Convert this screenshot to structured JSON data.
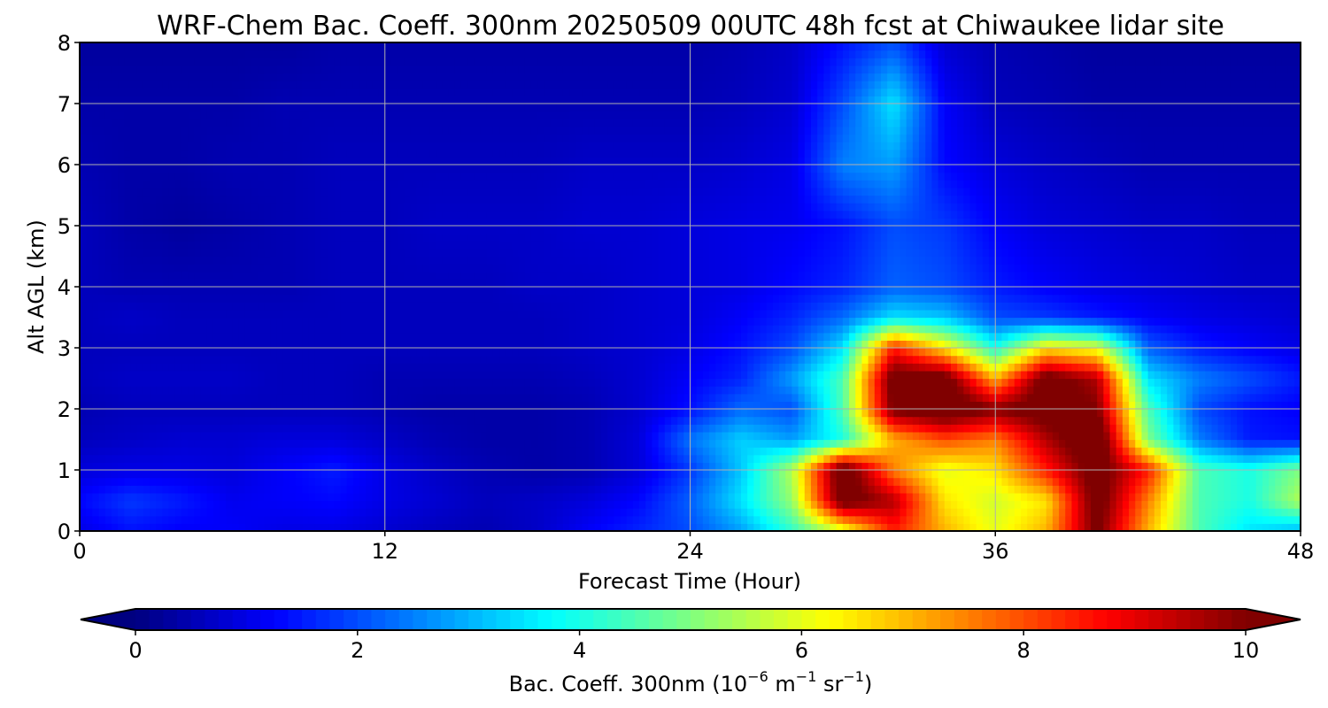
{
  "chart_data": {
    "type": "heatmap",
    "title": "WRF-Chem Bac. Coeff. 300nm  20250509 00UTC 48h fcst at Chiwaukee lidar site",
    "xlabel": "Forecast Time (Hour)",
    "ylabel": "Alt AGL (km)",
    "xlim": [
      0,
      48
    ],
    "ylim": [
      0,
      8
    ],
    "x_ticks": [
      "0",
      "12",
      "24",
      "36",
      "48"
    ],
    "y_ticks": [
      "0",
      "1",
      "2",
      "3",
      "4",
      "5",
      "6",
      "7",
      "8"
    ],
    "grid": true,
    "colormap": "jet",
    "colorbar": {
      "label_main": "Bac. Coeff. 300nm  (10",
      "exp1": "−6",
      "label_m": " m",
      "exp2": "−1",
      "label_sr": " sr",
      "exp3": "−1",
      "label_end": ")",
      "range": [
        0,
        10
      ],
      "extend": "both",
      "ticks": [
        "0",
        "2",
        "4",
        "6",
        "8",
        "10"
      ]
    },
    "x_hours": [
      0,
      2,
      4,
      6,
      8,
      10,
      12,
      14,
      16,
      18,
      20,
      22,
      24,
      26,
      28,
      30,
      32,
      34,
      36,
      38,
      40,
      42,
      44,
      46,
      48
    ],
    "y_km": [
      0,
      0.5,
      1,
      1.5,
      2,
      2.5,
      3,
      3.5,
      4,
      5,
      6,
      7,
      8
    ],
    "values": [
      [
        1.0,
        1.4,
        1.2,
        1.2,
        1.0,
        1.0,
        0.8,
        0.6,
        0.5,
        0.7,
        1.2,
        1.6,
        2.0,
        2.8,
        4.2,
        5.8,
        8.5,
        7.0,
        6.0,
        7.0,
        10.2,
        7.0,
        4.5,
        3.5,
        3.0
      ],
      [
        1.3,
        1.8,
        1.5,
        1.1,
        1.2,
        1.3,
        1.0,
        0.8,
        0.6,
        0.7,
        0.9,
        1.3,
        2.2,
        3.5,
        5.2,
        10.5,
        9.5,
        6.5,
        5.8,
        6.5,
        10.5,
        7.5,
        4.5,
        4.0,
        5.5
      ],
      [
        0.9,
        1.0,
        1.0,
        0.9,
        1.2,
        1.5,
        1.0,
        0.7,
        0.5,
        0.4,
        0.5,
        0.9,
        1.8,
        3.2,
        5.5,
        10.8,
        7.5,
        6.0,
        6.5,
        8.5,
        10.5,
        8.5,
        4.5,
        4.0,
        5.0
      ],
      [
        0.6,
        0.7,
        0.8,
        0.8,
        0.9,
        0.9,
        0.7,
        0.5,
        0.4,
        0.4,
        0.5,
        0.9,
        2.4,
        3.3,
        2.8,
        4.0,
        7.0,
        8.0,
        7.5,
        9.5,
        11.0,
        5.0,
        2.5,
        1.5,
        1.4
      ],
      [
        0.5,
        0.6,
        0.6,
        0.6,
        0.6,
        0.6,
        0.5,
        0.4,
        0.4,
        0.4,
        0.5,
        0.8,
        1.4,
        2.3,
        2.0,
        4.5,
        10.2,
        10.8,
        10.0,
        10.5,
        10.0,
        4.5,
        2.0,
        1.4,
        1.2
      ],
      [
        0.6,
        0.7,
        0.7,
        0.7,
        0.6,
        0.6,
        0.5,
        0.5,
        0.5,
        0.5,
        0.6,
        0.8,
        1.2,
        1.6,
        2.8,
        4.5,
        10.5,
        10.5,
        7.0,
        10.5,
        9.5,
        3.5,
        2.5,
        2.0,
        1.5
      ],
      [
        0.6,
        0.6,
        0.6,
        0.6,
        0.6,
        0.6,
        0.6,
        0.6,
        0.6,
        0.6,
        0.7,
        0.8,
        1.0,
        1.4,
        2.0,
        3.5,
        8.5,
        6.5,
        4.0,
        6.5,
        6.0,
        2.2,
        1.5,
        1.2,
        1.0
      ],
      [
        0.6,
        0.7,
        0.6,
        0.6,
        0.6,
        0.6,
        0.6,
        0.6,
        0.6,
        0.6,
        0.7,
        0.8,
        0.9,
        1.2,
        1.6,
        2.3,
        3.5,
        3.2,
        2.0,
        1.8,
        1.5,
        1.2,
        1.0,
        0.9,
        0.8
      ],
      [
        0.6,
        0.5,
        0.5,
        0.5,
        0.5,
        0.6,
        0.6,
        0.6,
        0.6,
        0.7,
        0.7,
        0.8,
        0.9,
        1.0,
        1.3,
        1.6,
        2.2,
        2.0,
        1.5,
        1.2,
        1.0,
        0.9,
        0.8,
        0.7,
        0.7
      ],
      [
        0.6,
        0.4,
        0.3,
        0.4,
        0.5,
        0.6,
        0.6,
        0.7,
        0.7,
        0.7,
        0.8,
        0.8,
        0.9,
        1.0,
        1.1,
        1.4,
        2.0,
        1.8,
        1.2,
        0.9,
        0.8,
        0.7,
        0.7,
        0.6,
        0.6
      ],
      [
        0.5,
        0.4,
        0.4,
        0.5,
        0.5,
        0.6,
        0.6,
        0.6,
        0.6,
        0.6,
        0.7,
        0.7,
        0.7,
        0.8,
        1.0,
        2.5,
        2.8,
        1.3,
        0.9,
        0.7,
        0.6,
        0.5,
        0.5,
        0.5,
        0.5
      ],
      [
        0.4,
        0.4,
        0.4,
        0.4,
        0.5,
        0.5,
        0.5,
        0.5,
        0.5,
        0.5,
        0.5,
        0.5,
        0.5,
        0.6,
        0.8,
        2.0,
        3.5,
        1.2,
        0.6,
        0.5,
        0.4,
        0.4,
        0.4,
        0.4,
        0.4
      ],
      [
        0.3,
        0.3,
        0.3,
        0.3,
        0.3,
        0.4,
        0.4,
        0.4,
        0.4,
        0.4,
        0.4,
        0.4,
        0.4,
        0.5,
        0.7,
        1.4,
        2.0,
        0.8,
        0.5,
        0.4,
        0.3,
        0.3,
        0.3,
        0.3,
        0.3
      ]
    ]
  }
}
